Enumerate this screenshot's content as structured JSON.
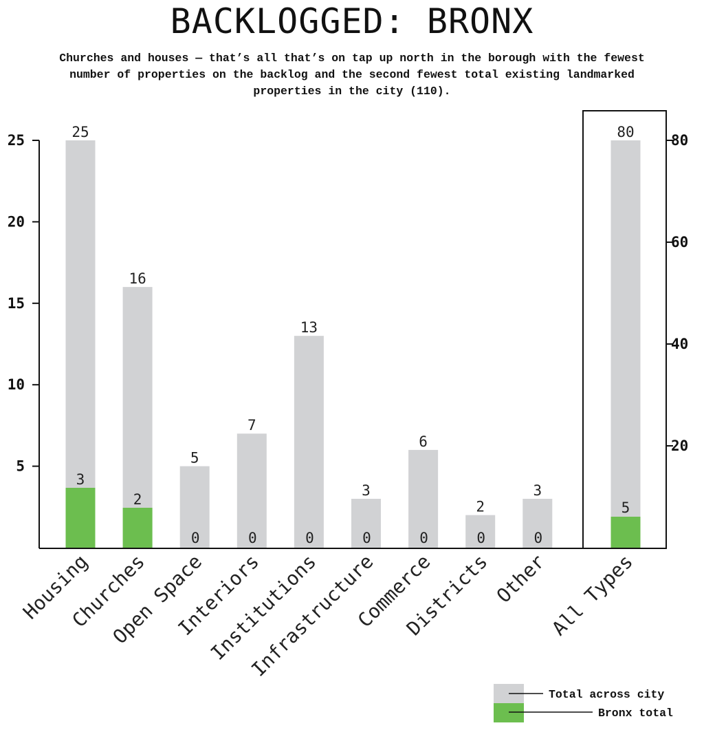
{
  "title": "BACKLOGGED: BRONX",
  "subtitle": "Churches and houses — that’s all that’s on tap up north in the borough with the fewest number of properties on the backlog and the second fewest total existing landmarked properties in the city (110).",
  "colors": {
    "total": "#d1d2d4",
    "bronx": "#6cbe4f",
    "highlight_label": "#2b3a8c"
  },
  "legend": {
    "total_label": "Total across city",
    "bronx_label": "Bronx total"
  },
  "chart_data": [
    {
      "type": "bar",
      "categories": [
        "Housing",
        "Churches",
        "Open Space",
        "Interiors",
        "Institutions",
        "Infrastructure",
        "Commerce",
        "Districts",
        "Other"
      ],
      "series": [
        {
          "name": "Total across city",
          "values": [
            25,
            16,
            5,
            7,
            13,
            3,
            6,
            2,
            3
          ]
        },
        {
          "name": "Bronx total",
          "values": [
            3,
            2,
            0,
            0,
            0,
            0,
            0,
            0,
            0
          ]
        }
      ],
      "yticks": [
        5,
        10,
        15,
        20,
        25
      ],
      "ylim": [
        0,
        25
      ]
    },
    {
      "type": "bar",
      "categories": [
        "All Types"
      ],
      "series": [
        {
          "name": "Total across city",
          "values": [
            80
          ]
        },
        {
          "name": "Bronx total",
          "values": [
            5
          ]
        }
      ],
      "yticks": [
        20,
        40,
        60,
        80
      ],
      "ylim": [
        0,
        80
      ]
    }
  ]
}
